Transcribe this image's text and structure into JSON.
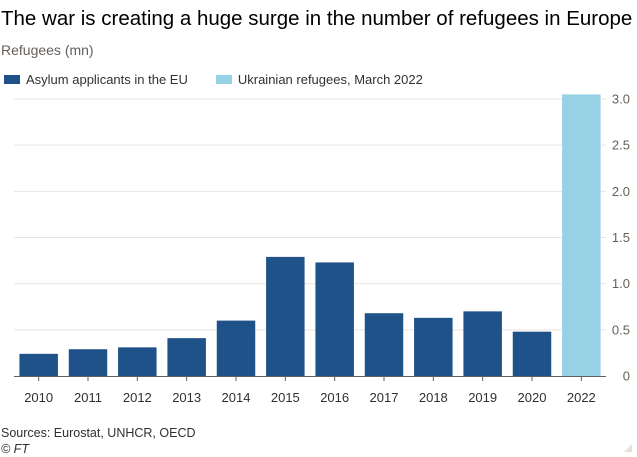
{
  "title": "The war is creating a huge surge in the number of refugees in Europe",
  "subtitle": "Refugees (mn)",
  "legend": [
    {
      "label": "Asylum applicants in the EU",
      "color": "#1e5288"
    },
    {
      "label": "Ukrainian refugees, March 2022",
      "color": "#96d1e6"
    }
  ],
  "footer": {
    "sources": "Sources: Eurostat, UNHCR, OECD",
    "copyright": "© FT"
  },
  "chart_data": {
    "type": "bar",
    "categories": [
      "2010",
      "2011",
      "2012",
      "2013",
      "2014",
      "2015",
      "2016",
      "2017",
      "2018",
      "2019",
      "2020",
      "2022"
    ],
    "series": [
      {
        "name": "Asylum applicants in the EU",
        "color": "#1e5288",
        "values": [
          0.24,
          0.29,
          0.31,
          0.41,
          0.6,
          1.29,
          1.23,
          0.68,
          0.63,
          0.7,
          0.48,
          null
        ]
      },
      {
        "name": "Ukrainian refugees, March 2022",
        "color": "#96d1e6",
        "values": [
          null,
          null,
          null,
          null,
          null,
          null,
          null,
          null,
          null,
          null,
          null,
          3.05
        ]
      }
    ],
    "ylabel": "Refugees (mn)",
    "ylim": [
      0,
      3.0
    ],
    "yticks": [
      0,
      0.5,
      1.0,
      1.5,
      2.0,
      2.5,
      3.0
    ],
    "ytick_labels": [
      "0",
      "0.5",
      "1.0",
      "1.5",
      "2.0",
      "2.5",
      "3.0"
    ],
    "y_axis_side": "right",
    "grid": true
  }
}
